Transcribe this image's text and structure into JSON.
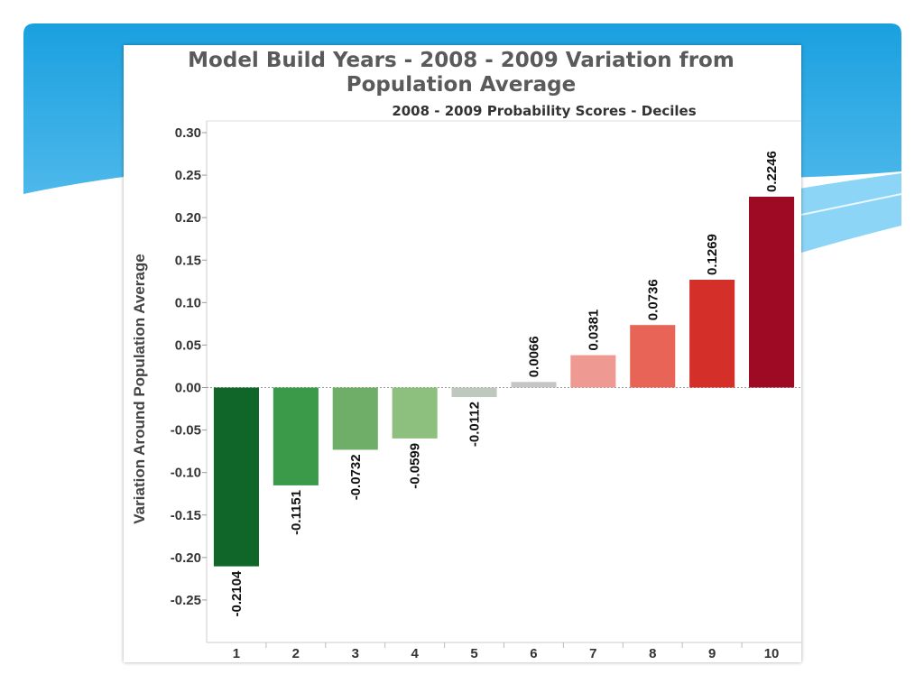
{
  "slide": {
    "accent_color": "#1AA0DF",
    "accent_light": "#7FD0F5"
  },
  "chart_data": {
    "type": "bar",
    "title_line1": "Model Build Years - 2008 - 2009 Variation from",
    "title_line2": "Population Average",
    "subtitle": "2008 - 2009 Probability Scores - Deciles",
    "xlabel": "",
    "ylabel": "Variation Around Population Average",
    "categories": [
      "1",
      "2",
      "3",
      "4",
      "5",
      "6",
      "7",
      "8",
      "9",
      "10"
    ],
    "values": [
      -0.2104,
      -0.1151,
      -0.0732,
      -0.0599,
      -0.0112,
      0.0066,
      0.0381,
      0.0736,
      0.1269,
      0.2246
    ],
    "value_labels": [
      "-0.2104",
      "-0.1151",
      "-0.0732",
      "-0.0599",
      "-0.0112",
      "0.0066",
      "0.0381",
      "0.0736",
      "0.1269",
      "0.2246"
    ],
    "colors": [
      "#0F6628",
      "#3A9A4A",
      "#6FAE68",
      "#8DC07F",
      "#BFC8BE",
      "#C6C6C6",
      "#EE9A92",
      "#E86457",
      "#D42F28",
      "#9E0A24"
    ],
    "ylim": [
      -0.3,
      0.3
    ],
    "yticks": [
      0.3,
      0.25,
      0.2,
      0.15,
      0.1,
      0.05,
      0.0,
      -0.05,
      -0.1,
      -0.15,
      -0.2,
      -0.25
    ],
    "ytick_labels": [
      "0.30",
      "0.25",
      "0.20",
      "0.15",
      "0.10",
      "0.05",
      "0.00",
      "-0.05",
      "-0.10",
      "-0.15",
      "-0.20",
      "-0.25"
    ],
    "grid": false
  }
}
